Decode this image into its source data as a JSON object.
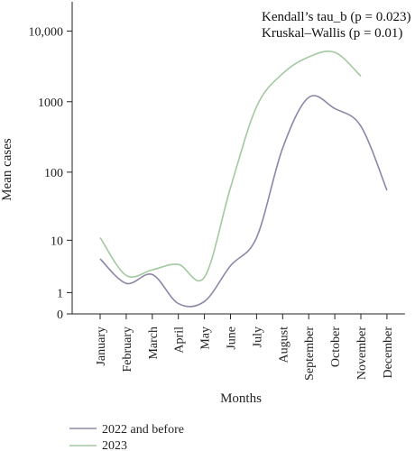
{
  "chart_data": {
    "type": "line",
    "xlabel": "Months",
    "ylabel": "Mean cases",
    "yscale": "log1p",
    "categories": [
      "January",
      "February",
      "March",
      "April",
      "May",
      "June",
      "July",
      "August",
      "September",
      "October",
      "November",
      "December"
    ],
    "y_ticks": [
      0,
      1,
      10,
      100,
      1000,
      10000
    ],
    "y_tick_labels": [
      "0",
      "1",
      "10",
      "100",
      "1000",
      "10,000"
    ],
    "series": [
      {
        "name": "2022 and before",
        "color": "#8e86a8",
        "values": [
          5,
          1.7,
          2.6,
          0.4,
          0.5,
          3.8,
          11,
          220,
          1150,
          800,
          450,
          55
        ]
      },
      {
        "name": "2023",
        "color": "#a3c9a0",
        "values": [
          11,
          2.5,
          3.2,
          4.0,
          2.3,
          60,
          850,
          2500,
          4300,
          5000,
          2300,
          null
        ]
      }
    ],
    "annotations": [
      "Kendall’s tau_b (p = 0.023)",
      "Kruskal–Wallis (p = 0.01)"
    ],
    "legend_position": "bottom-left",
    "grid": false
  }
}
